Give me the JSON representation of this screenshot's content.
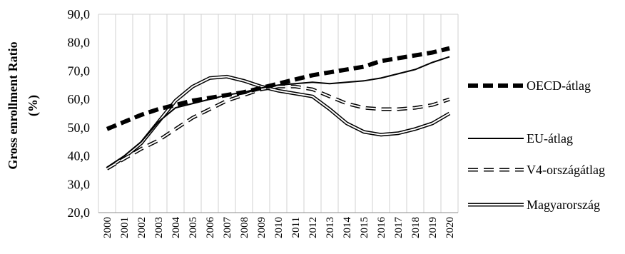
{
  "chart_data": {
    "type": "line",
    "title": "",
    "xlabel": "",
    "ylabel_line1": "Gross enrollment Ratio",
    "ylabel_line2": "(%)",
    "ylim": [
      20,
      90
    ],
    "yticks": [
      "20,0",
      "30,0",
      "40,0",
      "50,0",
      "60,0",
      "70,0",
      "80,0",
      "90,0"
    ],
    "grid": "vertical",
    "legend_position": "right",
    "x": [
      "2000",
      "2001",
      "2002",
      "2003",
      "2004",
      "2005",
      "2006",
      "2007",
      "2008",
      "2009",
      "2010",
      "2011",
      "2012",
      "2013",
      "2014",
      "2015",
      "2016",
      "2017",
      "2018",
      "2019",
      "2020"
    ],
    "series": [
      {
        "name": "OECD-átlag",
        "style": "thick-dashed",
        "color": "#000000",
        "values": [
          49.5,
          52.0,
          54.5,
          56.5,
          58.0,
          59.5,
          60.5,
          61.5,
          62.5,
          64.0,
          65.5,
          67.0,
          68.5,
          69.5,
          70.5,
          71.5,
          73.5,
          74.5,
          75.5,
          76.5,
          78.0
        ]
      },
      {
        "name": "EU-átlag",
        "style": "solid",
        "color": "#000000",
        "values": [
          36.0,
          40.0,
          45.0,
          52.0,
          57.0,
          58.5,
          60.0,
          61.5,
          62.5,
          64.0,
          65.0,
          65.5,
          66.0,
          65.5,
          66.0,
          66.5,
          67.5,
          69.0,
          70.5,
          73.0,
          75.0
        ]
      },
      {
        "name": "V4-országátlag",
        "style": "hollow-dashed",
        "color": "#000000",
        "values": [
          35.5,
          39.0,
          42.5,
          45.5,
          49.5,
          53.5,
          56.5,
          59.5,
          61.5,
          63.5,
          64.5,
          64.5,
          63.5,
          61.0,
          58.5,
          57.0,
          56.5,
          56.5,
          57.0,
          58.0,
          60.0
        ]
      },
      {
        "name": "Magyarország",
        "style": "double-line",
        "color": "#000000",
        "values": [
          35.5,
          39.5,
          44.5,
          52.0,
          59.5,
          64.5,
          67.5,
          68.0,
          66.5,
          64.5,
          63.0,
          62.0,
          61.0,
          56.5,
          51.5,
          48.5,
          47.5,
          48.0,
          49.5,
          51.5,
          55.0
        ]
      }
    ]
  }
}
